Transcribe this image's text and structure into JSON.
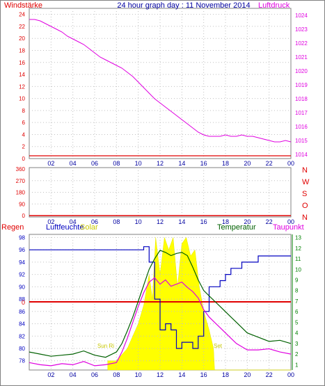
{
  "title": "24 hour graph day : 11 November 2014",
  "colors": {
    "frame": "#808080",
    "red": "#e00000",
    "magenta": "#e000e0",
    "blue": "#0000c0",
    "green": "#006000",
    "title": "#0000a0",
    "yellow": "#ffff00",
    "axis_green": "#008000"
  },
  "chart_data": [
    {
      "type": "line",
      "panel": "pressure",
      "left_label": "Windstärke",
      "right_label": "Luftdruck",
      "x_ticks": [
        "02",
        "04",
        "06",
        "08",
        "10",
        "12",
        "14",
        "16",
        "18",
        "20",
        "22",
        "00"
      ],
      "left_ticks": [
        "24",
        "22",
        "20",
        "18",
        "16",
        "14",
        "12",
        "10",
        "8",
        "6",
        "4",
        "2",
        "0"
      ],
      "right_ticks": [
        "1024",
        "1023",
        "1022",
        "1021",
        "1020",
        "1019",
        "1018",
        "1017",
        "1016",
        "1015",
        "1014"
      ],
      "left_range": [
        0,
        25
      ],
      "right_range": [
        1013.7,
        1024.5
      ],
      "series": [
        {
          "name": "Luftdruck",
          "axis": "right",
          "color": "magenta",
          "x": [
            0,
            0.5,
            1,
            1.5,
            2,
            2.5,
            3,
            3.5,
            4,
            4.5,
            5,
            5.5,
            6,
            6.5,
            7,
            7.5,
            8,
            8.5,
            9,
            9.5,
            10,
            10.5,
            11,
            11.5,
            12,
            12.5,
            13,
            13.5,
            14,
            14.5,
            15,
            15.5,
            16,
            16.5,
            17,
            17.5,
            18,
            18.5,
            19,
            19.5,
            20,
            20.5,
            21,
            21.5,
            22,
            22.5,
            23,
            23.5,
            24
          ],
          "y": [
            1023.7,
            1023.7,
            1023.6,
            1023.4,
            1023.2,
            1023.0,
            1022.8,
            1022.5,
            1022.3,
            1022.1,
            1021.9,
            1021.6,
            1021.3,
            1021.0,
            1020.8,
            1020.6,
            1020.4,
            1020.2,
            1019.9,
            1019.6,
            1019.2,
            1018.8,
            1018.4,
            1018.0,
            1017.7,
            1017.4,
            1017.1,
            1016.8,
            1016.5,
            1016.2,
            1015.9,
            1015.6,
            1015.4,
            1015.3,
            1015.3,
            1015.3,
            1015.4,
            1015.3,
            1015.3,
            1015.4,
            1015.3,
            1015.3,
            1015.2,
            1015.1,
            1015.0,
            1014.9,
            1014.9,
            1015.0,
            1014.9
          ]
        }
      ]
    },
    {
      "type": "line",
      "panel": "wind_direction",
      "left_ticks": [
        "360",
        "270",
        "180",
        "90",
        "0"
      ],
      "right_labels": [
        "N",
        "W",
        "S",
        "O",
        "N"
      ],
      "x_ticks": [
        "02",
        "04",
        "06",
        "08",
        "10",
        "12",
        "14",
        "16",
        "18",
        "20",
        "22",
        "00"
      ],
      "series": []
    },
    {
      "type": "line",
      "panel": "weather",
      "labels": {
        "rain": "Regen",
        "humidity": "Luftfeuchte",
        "solar": "Solar",
        "temperature": "Temperatur",
        "dewpoint": "Taupunkt",
        "sunrise": "Sun Ri",
        "sunset": "Set",
        "rain_value": "0"
      },
      "humidity_ticks": [
        "98",
        "96",
        "94",
        "92",
        "90",
        "88",
        "86",
        "84",
        "82",
        "80",
        "78"
      ],
      "humidity_range": [
        76.5,
        98.5
      ],
      "temp_ticks": [
        "13",
        "12",
        "11",
        "10",
        "9",
        "8",
        "7",
        "6",
        "5",
        "4",
        "3",
        "2",
        "1"
      ],
      "temp_range": [
        0.5,
        13.3
      ],
      "x_ticks": [
        "02",
        "04",
        "06",
        "08",
        "10",
        "12",
        "14",
        "16",
        "18",
        "20",
        "22",
        "00"
      ],
      "series": [
        {
          "name": "Luftfeuchte",
          "axis": "humidity",
          "color": "blue",
          "x": [
            0,
            2,
            4,
            6,
            8,
            10.5,
            11,
            11.5,
            12,
            12.5,
            13,
            13.5,
            14,
            14.5,
            15,
            15.5,
            16,
            16.5,
            17,
            17.5,
            18,
            18.5,
            19,
            19.5,
            20,
            20.5,
            21,
            21.5,
            22,
            23,
            24
          ],
          "y": [
            96,
            96,
            96,
            96,
            96,
            96.5,
            94,
            88,
            83,
            84,
            83,
            80,
            81,
            81,
            80,
            82,
            86,
            90,
            90,
            91,
            92,
            93,
            93,
            94,
            94,
            94,
            95,
            95,
            95,
            95,
            95
          ]
        },
        {
          "name": "Temperatur",
          "axis": "temp",
          "color": "green",
          "x": [
            0,
            1,
            2,
            3,
            4,
            5,
            6,
            7,
            8,
            8.5,
            9,
            9.5,
            10,
            10.5,
            11,
            11.5,
            12,
            12.5,
            13,
            13.5,
            14,
            14.5,
            15,
            15.5,
            16,
            16.5,
            17,
            17.5,
            18,
            18.5,
            19,
            19.5,
            20,
            21,
            22,
            23,
            24
          ],
          "y": [
            2.2,
            2.0,
            1.8,
            1.9,
            2.0,
            2.3,
            1.9,
            1.7,
            2.2,
            3.0,
            4.2,
            5.5,
            7.0,
            8.5,
            10.0,
            11.0,
            11.8,
            11.6,
            11.3,
            11.5,
            11.6,
            11.3,
            10.2,
            9.0,
            8.0,
            7.5,
            7.0,
            6.5,
            6.0,
            5.5,
            5.0,
            4.5,
            4.0,
            3.6,
            3.2,
            3.3,
            3.0
          ]
        },
        {
          "name": "Taupunkt",
          "axis": "temp",
          "color": "magenta",
          "x": [
            0,
            1,
            2,
            3,
            4,
            5,
            6,
            7,
            8,
            8.5,
            9,
            9.5,
            10,
            10.5,
            11,
            11.5,
            12,
            12.5,
            13,
            13.5,
            14,
            14.5,
            15,
            15.5,
            16,
            16.5,
            17,
            17.5,
            18,
            18.5,
            19,
            19.5,
            20,
            21,
            22,
            23,
            24
          ],
          "y": [
            1.2,
            1.0,
            0.9,
            1.1,
            1.0,
            1.3,
            0.9,
            1.0,
            1.2,
            2.2,
            3.5,
            5.0,
            6.5,
            7.8,
            8.8,
            9.2,
            8.6,
            9.0,
            8.4,
            8.6,
            8.8,
            8.3,
            7.9,
            7.3,
            6.2,
            5.5,
            5.0,
            4.5,
            4.0,
            3.5,
            3.0,
            2.7,
            2.4,
            2.4,
            2.5,
            2.2,
            2.0
          ]
        },
        {
          "name": "Solar",
          "axis": "humidity",
          "color": "yellow",
          "type": "area",
          "x": [
            7.2,
            8,
            8.5,
            9,
            9.5,
            10,
            10.5,
            11,
            11.3,
            11.6,
            12,
            12.4,
            12.8,
            13.2,
            13.6,
            14,
            14.4,
            14.8,
            15.2,
            15.6,
            16,
            16.5,
            16.9,
            17,
            24
          ],
          "y": [
            78,
            78,
            79,
            80,
            82,
            84,
            87,
            92,
            88,
            98,
            92,
            98,
            96,
            98,
            90,
            97,
            98,
            95,
            96,
            90,
            86,
            83,
            80,
            76.5,
            76.5
          ]
        }
      ],
      "rain": {
        "value_label": "0",
        "color": "red"
      }
    }
  ]
}
